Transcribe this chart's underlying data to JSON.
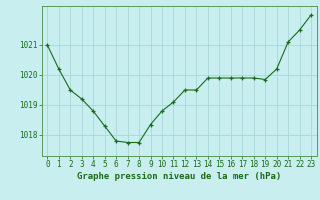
{
  "x": [
    0,
    1,
    2,
    3,
    4,
    5,
    6,
    7,
    8,
    9,
    10,
    11,
    12,
    13,
    14,
    15,
    16,
    17,
    18,
    19,
    20,
    21,
    22,
    23
  ],
  "y": [
    1021.0,
    1020.2,
    1019.5,
    1019.2,
    1018.8,
    1018.3,
    1017.8,
    1017.75,
    1017.75,
    1018.35,
    1018.8,
    1019.1,
    1019.5,
    1019.5,
    1019.9,
    1019.9,
    1019.9,
    1019.9,
    1019.9,
    1019.85,
    1020.2,
    1021.1,
    1021.5,
    1022.0
  ],
  "line_color": "#1a6b1a",
  "marker_color": "#1a6b1a",
  "bg_color": "#c8eef0",
  "grid_color": "#a8d8da",
  "border_color": "#5a9a5a",
  "ylabel_ticks": [
    1018,
    1019,
    1020,
    1021
  ],
  "xlabel": "Graphe pression niveau de la mer (hPa)",
  "ylim": [
    1017.3,
    1022.3
  ],
  "xlim": [
    -0.5,
    23.5
  ],
  "xlabel_fontsize": 6.5,
  "tick_fontsize": 5.5,
  "label_color": "#1a6b1a",
  "figsize": [
    3.2,
    2.0
  ],
  "dpi": 100
}
